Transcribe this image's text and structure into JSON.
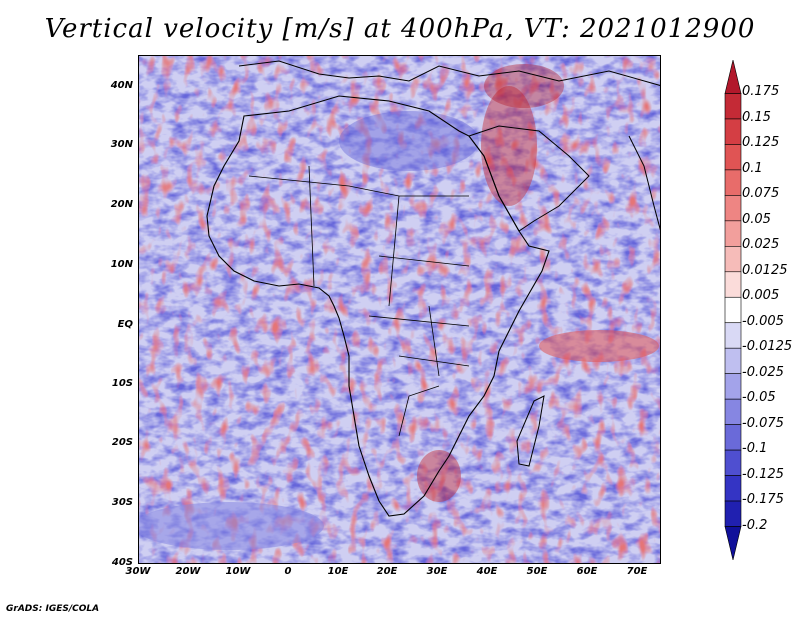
{
  "title": "Vertical velocity [m/s] at 400hPa, VT: 2021012900",
  "credit": "GrADS: IGES/COLA",
  "map": {
    "lon_range": [
      -30,
      75
    ],
    "lat_range": [
      -40,
      45
    ],
    "lat_ticks": [
      "40N",
      "30N",
      "20N",
      "10N",
      "EQ",
      "10S",
      "20S",
      "30S",
      "40S"
    ],
    "lon_ticks": [
      "30W",
      "20W",
      "10W",
      "0",
      "10E",
      "20E",
      "30E",
      "40E",
      "50E",
      "60E",
      "70E"
    ]
  },
  "colorbar": {
    "labels": [
      "0.175",
      "0.15",
      "0.125",
      "0.1",
      "0.075",
      "0.05",
      "0.025",
      "0.0125",
      "0.005",
      "-0.005",
      "-0.0125",
      "-0.025",
      "-0.05",
      "-0.075",
      "-0.1",
      "-0.125",
      "-0.175",
      "-0.2"
    ],
    "colors": [
      "#b2182b",
      "#c42a36",
      "#d43e44",
      "#e05454",
      "#e86c6a",
      "#ee8583",
      "#f29f9c",
      "#f6bcb9",
      "#fbdcda",
      "#ffffff",
      "#d9d9f5",
      "#bfbff0",
      "#a3a3ea",
      "#8686e2",
      "#6a6ad9",
      "#4f4fd0",
      "#3434c4",
      "#2020b0",
      "#10109a"
    ]
  }
}
